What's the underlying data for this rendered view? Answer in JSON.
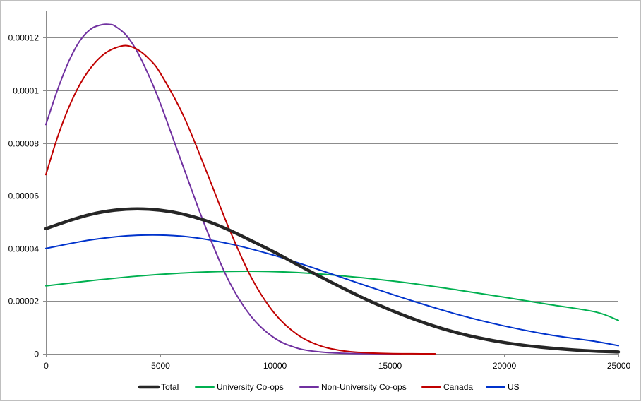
{
  "chart_data": {
    "type": "line",
    "xlim": [
      0,
      25000
    ],
    "ylim": [
      0,
      0.00013
    ],
    "x_ticks": [
      "0",
      "5000",
      "10000",
      "15000",
      "20000",
      "25000"
    ],
    "y_ticks": [
      "0",
      "0.00002",
      "0.00004",
      "0.00006",
      "0.00008",
      "0.0001",
      "0.00012"
    ],
    "y_tick_values": [
      0,
      2e-05,
      4e-05,
      6e-05,
      8e-05,
      0.0001,
      0.00012
    ],
    "x_tick_values": [
      0,
      5000,
      10000,
      15000,
      20000,
      25000
    ],
    "grid": "horizontal",
    "legend_position": "bottom",
    "series": [
      {
        "name": "Total",
        "color": "#262626",
        "x": [
          0,
          1000,
          2000,
          3000,
          4000,
          5000,
          6000,
          7000,
          8000,
          9000,
          10000,
          11000,
          12000,
          13000,
          14000,
          15000,
          16000,
          17000,
          18000,
          19000,
          20000,
          21000,
          22000,
          23000,
          24000,
          25000
        ],
        "values": [
          4.75e-05,
          5.05e-05,
          5.3e-05,
          5.45e-05,
          5.5e-05,
          5.45e-05,
          5.3e-05,
          5.05e-05,
          4.7e-05,
          4.28e-05,
          3.85e-05,
          3.38e-05,
          2.92e-05,
          2.48e-05,
          2.06e-05,
          1.68e-05,
          1.34e-05,
          1.04e-05,
          7.9e-06,
          5.9e-06,
          4.3e-06,
          3.1e-06,
          2.2e-06,
          1.5e-06,
          1e-06,
          7e-07
        ]
      },
      {
        "name": "University Co-ops",
        "color": "#00b050",
        "x": [
          0,
          2000,
          4000,
          6000,
          8000,
          10000,
          12000,
          14000,
          16000,
          18000,
          20000,
          22000,
          24000,
          25000
        ],
        "values": [
          2.58e-05,
          2.78e-05,
          2.95e-05,
          3.07e-05,
          3.13e-05,
          3.12e-05,
          3.03e-05,
          2.87e-05,
          2.67e-05,
          2.42e-05,
          2.15e-05,
          1.87e-05,
          1.59e-05,
          1.27e-05
        ]
      },
      {
        "name": "Non-University Co-ops",
        "color": "#7030a0",
        "x": [
          0,
          500,
          1000,
          1500,
          2000,
          2500,
          2800,
          3000,
          3500,
          4000,
          4500,
          5000,
          6000,
          7000,
          8000,
          9000,
          10000,
          11000,
          12000,
          13000,
          14000,
          15000,
          15500
        ],
        "values": [
          8.7e-05,
          0.0001,
          0.000111,
          0.000119,
          0.0001235,
          0.000125,
          0.000125,
          0.0001245,
          0.000121,
          0.0001145,
          0.0001055,
          9.5e-05,
          7.1e-05,
          4.75e-05,
          2.75e-05,
          1.38e-05,
          5.9e-06,
          2.1e-06,
          7e-07,
          2e-07,
          5e-08,
          1e-08,
          0.0
        ]
      },
      {
        "name": "Canada",
        "color": "#c00000",
        "x": [
          0,
          500,
          1000,
          1500,
          2000,
          2500,
          3000,
          3500,
          4000,
          4500,
          5000,
          6000,
          7000,
          8000,
          9000,
          10000,
          11000,
          12000,
          13000,
          14000,
          15000,
          16000,
          17000
        ],
        "values": [
          6.8e-05,
          8.2e-05,
          9.35e-05,
          0.0001025,
          0.000109,
          0.0001135,
          0.000116,
          0.000117,
          0.0001155,
          0.000112,
          0.0001065,
          9.05e-05,
          6.95e-05,
          4.75e-05,
          2.85e-05,
          1.52e-05,
          7.2e-06,
          3e-06,
          1.1e-06,
          4e-07,
          1e-07,
          2e-08,
          0.0
        ]
      },
      {
        "name": "US",
        "color": "#0033cc",
        "x": [
          0,
          2000,
          4000,
          6000,
          8000,
          10000,
          12000,
          14000,
          16000,
          18000,
          20000,
          22000,
          24000,
          25000
        ],
        "values": [
          4e-05,
          4.33e-05,
          4.5e-05,
          4.46e-05,
          4.18e-05,
          3.73e-05,
          3.17e-05,
          2.58e-05,
          2.01e-05,
          1.49e-05,
          1.06e-05,
          7.2e-06,
          4.7e-06,
          3.1e-06
        ]
      }
    ]
  }
}
